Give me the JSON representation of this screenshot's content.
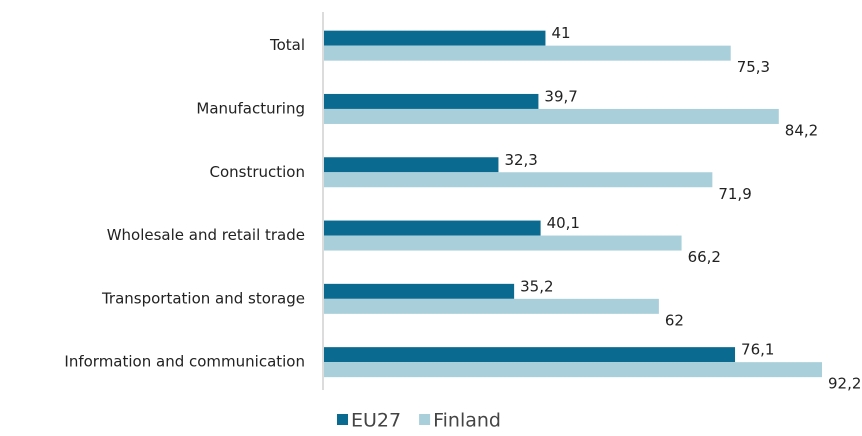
{
  "chart_data": {
    "type": "hbar",
    "categories": [
      "Total",
      "Manufacturing",
      "Construction",
      "Wholesale and retail trade",
      "Transportation and storage",
      "Information and communication"
    ],
    "series": [
      {
        "name": "EU27",
        "color": "#0b6a8f",
        "values": [
          41,
          39.7,
          32.3,
          40.1,
          35.2,
          76.1
        ],
        "value_labels": [
          "41",
          "39,7",
          "32,3",
          "40,1",
          "35,2",
          "76,1"
        ]
      },
      {
        "name": "Finland",
        "color": "#a9cfda",
        "values": [
          75.3,
          84.2,
          71.9,
          66.2,
          62,
          92.2
        ],
        "value_labels": [
          "75,3",
          "84,2",
          "71,9",
          "66,2",
          "62",
          "92,2"
        ]
      }
    ],
    "legend": "bottom"
  }
}
